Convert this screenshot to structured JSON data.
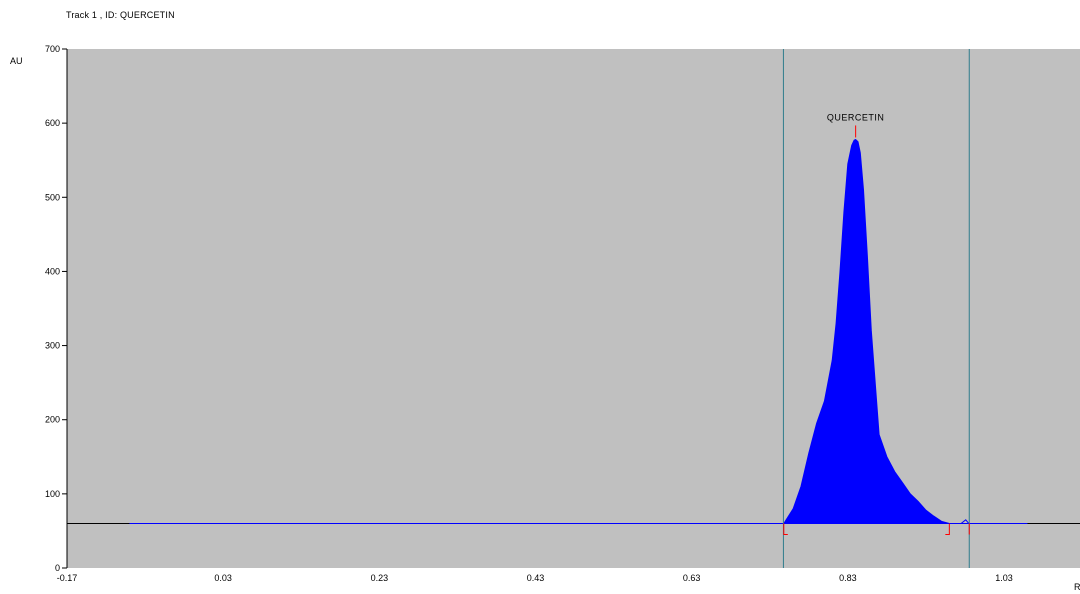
{
  "header": {
    "track_title": "Track  1 , ID: QUERCETIN"
  },
  "chart_data": {
    "type": "area",
    "title": "",
    "ylabel": "AU",
    "xlabel": "R",
    "xlim": [
      -0.17,
      1.1
    ],
    "ylim": [
      0,
      700
    ],
    "x_ticks": [
      "-0.17",
      "0.03",
      "0.23",
      "0.43",
      "0.63",
      "0.83",
      "1.03"
    ],
    "x_tick_values": [
      -0.17,
      0.03,
      0.23,
      0.43,
      0.63,
      0.83,
      1.03
    ],
    "y_ticks": [
      0,
      100,
      200,
      300,
      400,
      500,
      600,
      700
    ],
    "baseline_au": 60,
    "baseline_x_range": [
      -0.09,
      1.06
    ],
    "boundary_lines_x": [
      0.7475,
      0.9855
    ],
    "peak": {
      "label": "QUERCETIN",
      "apex_x": 0.84,
      "apex_y": 578,
      "start_x": 0.748,
      "end_x": 0.96,
      "profile_x": [
        0.748,
        0.76,
        0.77,
        0.78,
        0.79,
        0.8,
        0.81,
        0.815,
        0.82,
        0.825,
        0.83,
        0.835,
        0.838,
        0.84,
        0.843,
        0.846,
        0.85,
        0.855,
        0.86,
        0.865,
        0.87,
        0.875,
        0.88,
        0.89,
        0.9,
        0.91,
        0.92,
        0.93,
        0.94,
        0.95,
        0.96
      ],
      "profile_y": [
        60,
        80,
        110,
        155,
        195,
        225,
        280,
        330,
        400,
        480,
        545,
        570,
        577,
        578,
        575,
        560,
        510,
        420,
        320,
        250,
        180,
        165,
        150,
        130,
        115,
        100,
        90,
        78,
        70,
        63,
        60
      ]
    },
    "minor_peak": {
      "x": 0.981,
      "y": 65
    },
    "colors": {
      "plot_bg": "#c0c0c0",
      "fill": "#0000ff",
      "baseline": "#0000ff",
      "axis_line": "#000000",
      "boundary": "#2f7c8c",
      "marker": "#ff0000"
    }
  }
}
